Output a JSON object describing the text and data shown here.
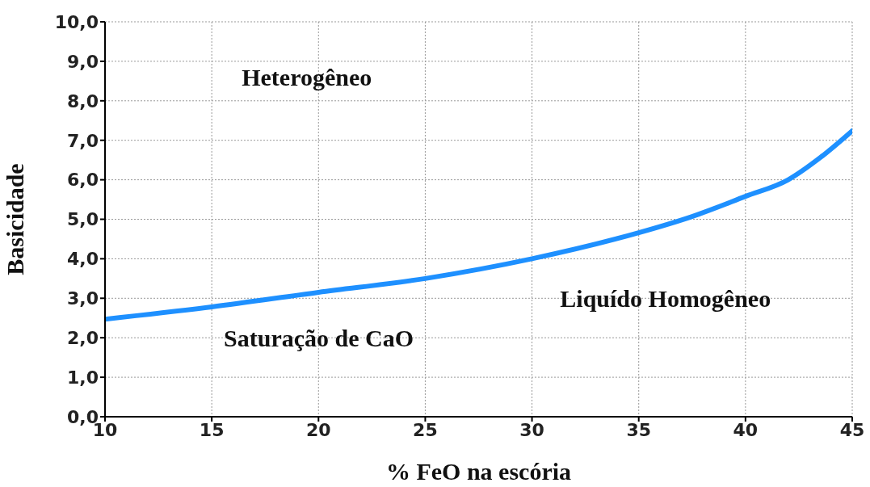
{
  "chart_data": {
    "type": "line",
    "xlabel": "% FeO na escória",
    "ylabel": "Basicidade",
    "x": [
      10,
      15,
      20,
      25,
      30,
      35,
      37.5,
      40,
      42,
      43.5,
      45
    ],
    "series": [
      {
        "color": "#1e90ff",
        "values": [
          2.47,
          2.78,
          3.15,
          3.5,
          4.0,
          4.66,
          5.07,
          5.58,
          6.0,
          6.56,
          7.24
        ]
      }
    ],
    "xlim": [
      10,
      45
    ],
    "xticks": [
      10,
      15,
      20,
      25,
      30,
      35,
      40,
      45
    ],
    "ylim": [
      0,
      10
    ],
    "yticks": [
      {
        "value": 0,
        "label": "0,0"
      },
      {
        "value": 1,
        "label": "1,0"
      },
      {
        "value": 2,
        "label": "2,0"
      },
      {
        "value": 3,
        "label": "3,0"
      },
      {
        "value": 4,
        "label": "4,0"
      },
      {
        "value": 5,
        "label": "5,0"
      },
      {
        "value": 6,
        "label": "6,0"
      },
      {
        "value": 7,
        "label": "7,0"
      },
      {
        "value": 8,
        "label": "8,0"
      },
      {
        "value": 9,
        "label": "9,0"
      },
      {
        "value": 10,
        "label": "10,0"
      }
    ],
    "grid": true,
    "marker": "none",
    "line_style": "solid",
    "legend": false,
    "annotations": [
      "Heterogêneo",
      "Saturação de CaO",
      "Liquído Homogêneo"
    ]
  }
}
